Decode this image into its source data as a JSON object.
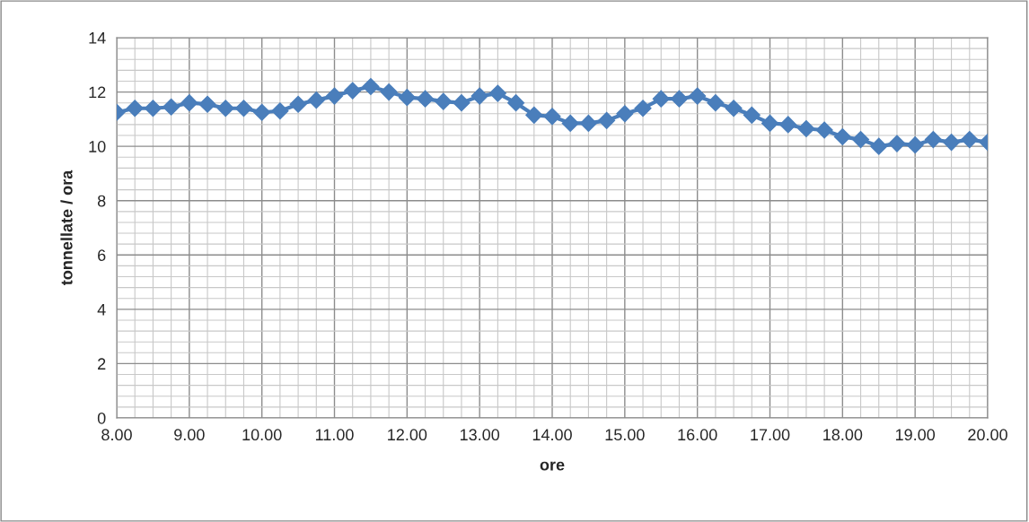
{
  "chart_data": {
    "type": "line",
    "xlabel": "ore",
    "ylabel": "tonnellate / ora",
    "x": [
      8,
      8.25,
      8.5,
      8.75,
      9,
      9.25,
      9.5,
      9.75,
      10,
      10.25,
      10.5,
      10.75,
      11,
      11.25,
      11.5,
      11.75,
      12,
      12.25,
      12.5,
      12.75,
      13,
      13.25,
      13.5,
      13.75,
      14,
      14.25,
      14.5,
      14.75,
      15,
      15.25,
      15.5,
      15.75,
      16,
      16.25,
      16.5,
      16.75,
      17,
      17.25,
      17.5,
      17.75,
      18,
      18.25,
      18.5,
      18.75,
      19,
      19.25,
      19.5,
      19.75,
      20
    ],
    "series": [
      {
        "color": "#4a7ebb",
        "values": [
          11.25,
          11.4,
          11.4,
          11.45,
          11.6,
          11.55,
          11.4,
          11.4,
          11.25,
          11.3,
          11.55,
          11.7,
          11.85,
          12.05,
          12.2,
          12.0,
          11.8,
          11.75,
          11.65,
          11.6,
          11.85,
          11.95,
          11.6,
          11.15,
          11.1,
          10.85,
          10.85,
          10.95,
          11.2,
          11.4,
          11.75,
          11.75,
          11.85,
          11.6,
          11.4,
          11.15,
          10.85,
          10.8,
          10.65,
          10.6,
          10.35,
          10.25,
          10.0,
          10.1,
          10.05,
          10.25,
          10.15,
          10.25,
          10.15
        ]
      }
    ],
    "xlim": [
      8,
      20
    ],
    "xticks": [
      {
        "value": 8,
        "label": "8.00"
      },
      {
        "value": 9,
        "label": "9.00"
      },
      {
        "value": 10,
        "label": "10.00"
      },
      {
        "value": 11,
        "label": "11.00"
      },
      {
        "value": 12,
        "label": "12.00"
      },
      {
        "value": 13,
        "label": "13.00"
      },
      {
        "value": 14,
        "label": "14.00"
      },
      {
        "value": 15,
        "label": "15.00"
      },
      {
        "value": 16,
        "label": "16.00"
      },
      {
        "value": 17,
        "label": "17.00"
      },
      {
        "value": 18,
        "label": "18.00"
      },
      {
        "value": 19,
        "label": "19.00"
      },
      {
        "value": 20,
        "label": "20.00"
      }
    ],
    "ylim": [
      0,
      14
    ],
    "yticks": [
      0,
      2,
      4,
      6,
      8,
      10,
      12,
      14
    ],
    "grid": true,
    "marker": "diamond",
    "line_style": "solid"
  }
}
